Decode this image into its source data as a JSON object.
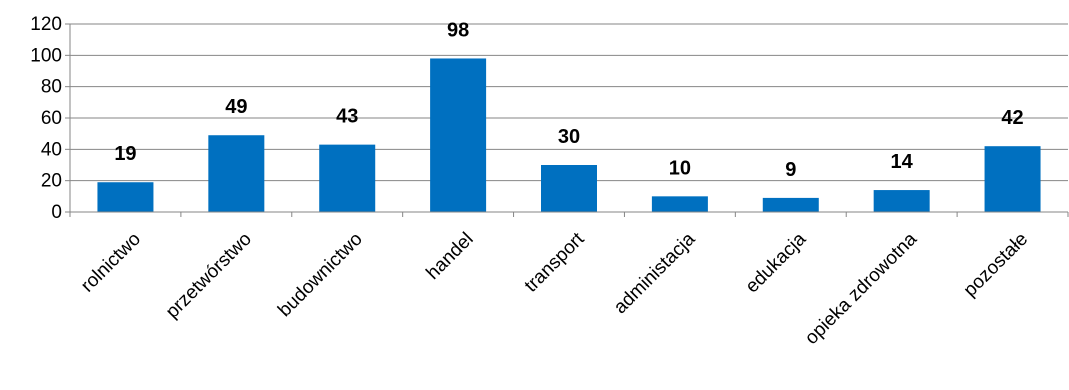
{
  "chart_data": {
    "type": "bar",
    "categories": [
      "rolnictwo",
      "przetwórstwo",
      "budownictwo",
      "handel",
      "transport",
      "administacja",
      "edukacja",
      "opieka zdrowotna",
      "pozostałe"
    ],
    "values": [
      19,
      49,
      43,
      98,
      30,
      10,
      9,
      14,
      42
    ],
    "data_labels": [
      "19",
      "49",
      "43",
      "98",
      "30",
      "10",
      "9",
      "14",
      "42"
    ],
    "y_ticks": [
      "0",
      "20",
      "40",
      "60",
      "80",
      "100",
      "120"
    ],
    "ylim": [
      0,
      120
    ],
    "grid": true,
    "legend": "none",
    "bar_color": "#0070C0"
  }
}
